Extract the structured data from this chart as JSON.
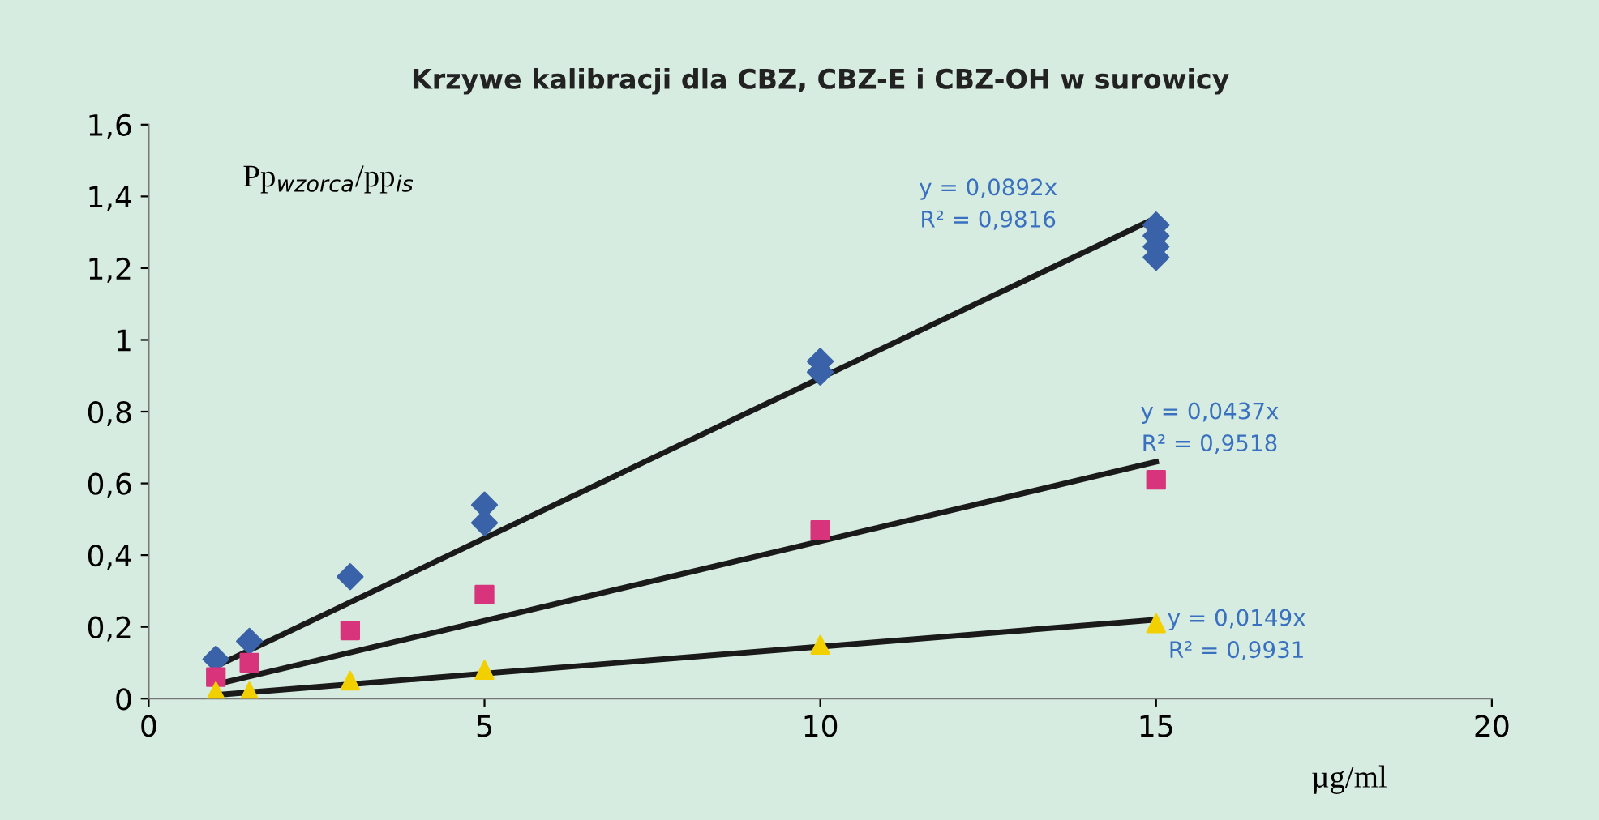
{
  "chart_data": {
    "type": "scatter",
    "title": "Krzywe kalibracji dla CBZ, CBZ-E i CBZ-OH w surowicy",
    "ylabel": "Pp$_{wzorca}$/pp$_{is}$",
    "xlabel": "µg/ml",
    "xlim": [
      0,
      20
    ],
    "xticks": [
      0,
      5,
      10,
      15,
      20
    ],
    "ylim": [
      0,
      1.6
    ],
    "yticks": [
      0,
      {
        "value": 0.2,
        "label": "0,2"
      },
      {
        "value": 0.4,
        "label": "0,4"
      },
      {
        "value": 0.6,
        "label": "0,6"
      },
      {
        "value": 0.8,
        "label": "0,8"
      },
      1,
      {
        "value": 1.2,
        "label": "1,2"
      },
      {
        "value": 1.4,
        "label": "1,4"
      },
      {
        "value": 1.6,
        "label": "1,6"
      }
    ],
    "grid": false,
    "legend": false,
    "series": [
      {
        "marker": "diamond",
        "color": "#3a62a8",
        "x": [
          1,
          1.5,
          3,
          5,
          5,
          10,
          10,
          15,
          15,
          15,
          15
        ],
        "values": [
          0.11,
          0.16,
          0.34,
          0.54,
          0.49,
          0.94,
          0.91,
          1.32,
          1.29,
          1.26,
          1.23
        ]
      },
      {
        "marker": "square",
        "color": "#d8347c",
        "x": [
          1,
          1.5,
          3,
          5,
          10,
          15
        ],
        "values": [
          0.06,
          0.1,
          0.19,
          0.29,
          0.47,
          0.61
        ]
      },
      {
        "marker": "triangle",
        "color": "#f2d000",
        "x": [
          1,
          1.5,
          3,
          5,
          10,
          15
        ],
        "values": [
          0.02,
          0.02,
          0.05,
          0.08,
          0.15,
          0.21
        ]
      },
      {
        "type": "line",
        "marker": "none",
        "color": "#1a1a1a",
        "x": [
          1,
          15
        ],
        "values": [
          0.09,
          1.34
        ]
      },
      {
        "type": "line",
        "marker": "none",
        "color": "#1a1a1a",
        "x": [
          1,
          15
        ],
        "values": [
          0.04,
          0.66
        ]
      },
      {
        "type": "line",
        "marker": "none",
        "color": "#1a1a1a",
        "x": [
          1,
          15
        ],
        "values": [
          0.01,
          0.22
        ]
      }
    ],
    "annotations": [
      "y = 0,0892x\nR² = 0,9816",
      "y = 0,0437x\nR² = 0,9518",
      "y = 0,0149x\nR² = 0,9931"
    ]
  }
}
